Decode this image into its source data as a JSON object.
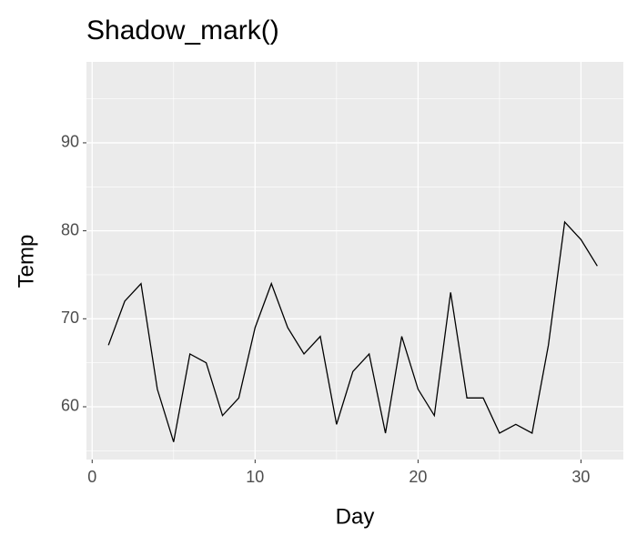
{
  "chart_data": {
    "type": "line",
    "title": "Shadow_mark()",
    "x_label": "Day",
    "y_label": "Temp",
    "x": [
      1,
      2,
      3,
      4,
      5,
      6,
      7,
      8,
      9,
      10,
      11,
      12,
      13,
      14,
      15,
      16,
      17,
      18,
      19,
      20,
      21,
      22,
      23,
      24,
      25,
      26,
      27,
      28,
      29,
      30,
      31
    ],
    "series": [
      {
        "name": "Temp",
        "color": "#000000",
        "values": [
          67,
          72,
          74,
          62,
          56,
          66,
          65,
          59,
          61,
          69,
          74,
          69,
          66,
          68,
          58,
          64,
          66,
          57,
          68,
          62,
          59,
          73,
          61,
          61,
          57,
          58,
          57,
          67,
          81,
          79,
          76
        ]
      }
    ],
    "xlim": [
      -0.35,
      32.6
    ],
    "ylim": [
      54,
      99.2
    ],
    "xticks": [
      0,
      10,
      20,
      30
    ],
    "yticks": [
      60,
      70,
      80,
      90
    ],
    "grid": true
  }
}
